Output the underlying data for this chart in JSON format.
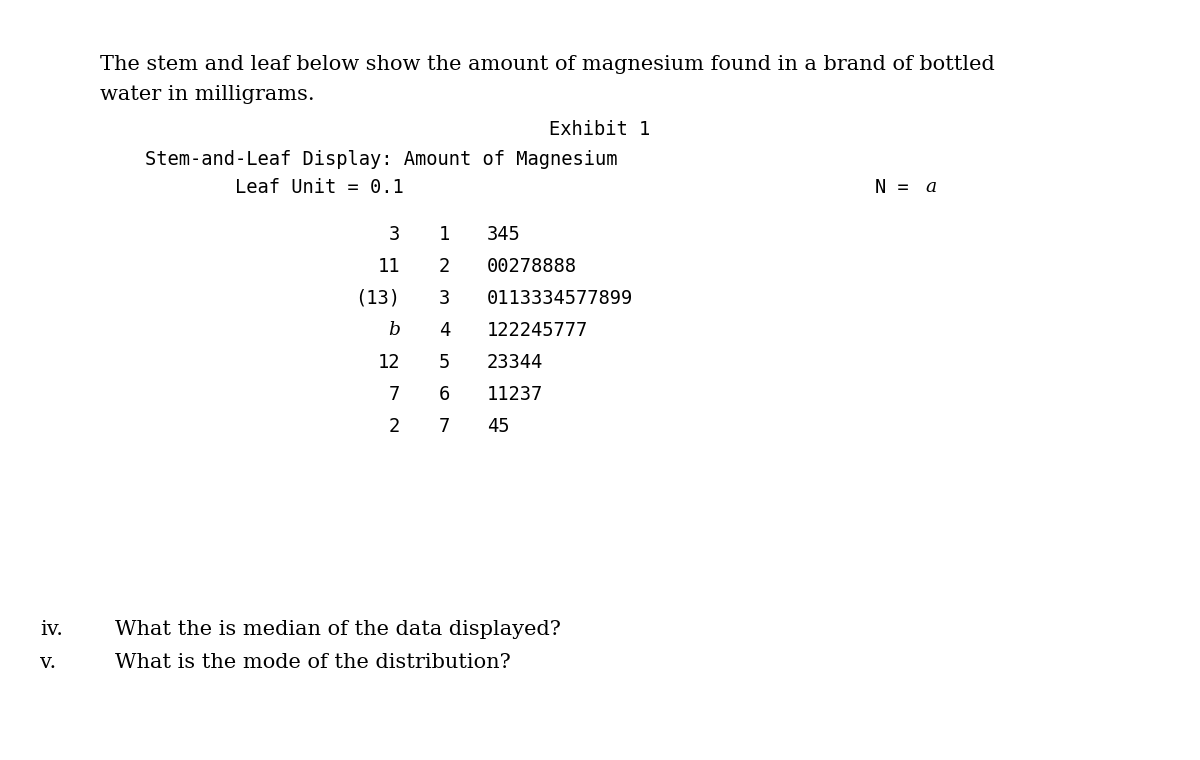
{
  "bg_color": "#ffffff",
  "text_color": "#000000",
  "intro_line1": "The stem and leaf below show the amount of magnesium found in a brand of bottled",
  "intro_line2": "water in milligrams.",
  "exhibit_title": "Exhibit 1",
  "display_title": "Stem-and-Leaf Display: Amount of Magnesium",
  "leaf_unit_line": "Leaf Unit = 0.1",
  "n_label": "N = ",
  "n_value": "a",
  "rows": [
    {
      "count": "3",
      "stem": "1",
      "leaves": "345"
    },
    {
      "count": "11",
      "stem": "2",
      "leaves": "00278888"
    },
    {
      "count": "(13)",
      "stem": "3",
      "leaves": "0113334577899"
    },
    {
      "count": "b",
      "stem": "4",
      "leaves": "122245777"
    },
    {
      "count": "12",
      "stem": "5",
      "leaves": "23344"
    },
    {
      "count": "7",
      "stem": "6",
      "leaves": "11237"
    },
    {
      "count": "2",
      "stem": "7",
      "leaves": "45"
    }
  ],
  "q_iv_label": "iv.",
  "q_iv_text": "What the is median of the data displayed?",
  "q_v_label": "v.",
  "q_v_text": "What is the mode of the distribution?",
  "intro_fontsize": 15,
  "mono_fontsize": 13.5,
  "q_fontsize": 15
}
